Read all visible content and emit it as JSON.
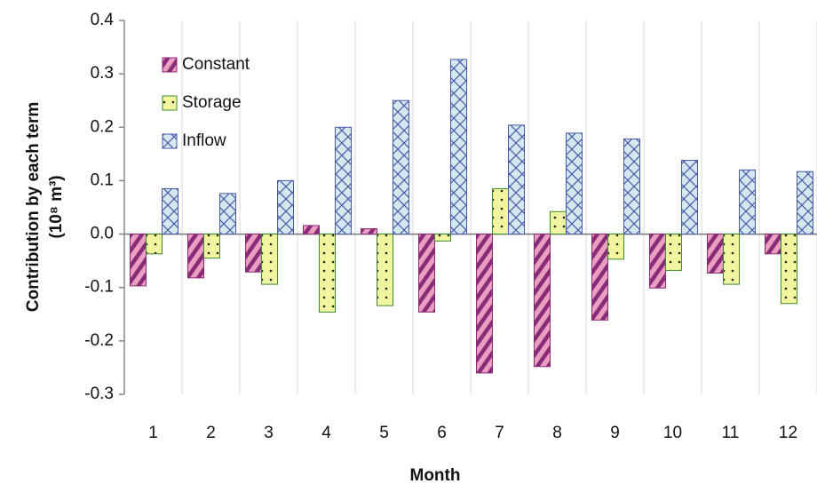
{
  "chart_data": {
    "type": "bar",
    "x_label": "Month",
    "y_label": [
      "Contribution by each term",
      "(10⁸ m³)"
    ],
    "categories": [
      "1",
      "2",
      "3",
      "4",
      "5",
      "6",
      "7",
      "8",
      "9",
      "10",
      "11",
      "12"
    ],
    "series": [
      {
        "name": "Constant",
        "color": "#e8a0c0",
        "edge": "#8a2a78",
        "pattern": "stripes",
        "values": [
          -0.097,
          -0.082,
          -0.071,
          0.016,
          0.01,
          -0.146,
          -0.26,
          -0.248,
          -0.161,
          -0.101,
          -0.073,
          -0.037
        ]
      },
      {
        "name": "Storage",
        "color": "#f2f5a0",
        "edge": "#3a8a2a",
        "pattern": "dots",
        "values": [
          -0.037,
          -0.045,
          -0.094,
          -0.146,
          -0.134,
          -0.013,
          0.085,
          0.042,
          -0.047,
          -0.068,
          -0.094,
          -0.13
        ]
      },
      {
        "name": "Inflow",
        "color": "#d4e8f0",
        "edge": "#4a5aa8",
        "pattern": "cross",
        "values": [
          0.085,
          0.076,
          0.1,
          0.2,
          0.25,
          0.327,
          0.204,
          0.189,
          0.178,
          0.138,
          0.12,
          0.117
        ]
      }
    ],
    "ylim": [
      -0.3,
      0.4
    ],
    "yticks": [
      {
        "value": 0.4,
        "label": "0.4"
      },
      {
        "value": 0.3,
        "label": "0.3"
      },
      {
        "value": 0.2,
        "label": "0.2"
      },
      {
        "value": 0.1,
        "label": "0.1"
      },
      {
        "value": 0,
        "label": "0.0"
      },
      {
        "value": -0.1,
        "label": "-0.1"
      },
      {
        "value": -0.2,
        "label": "-0.2"
      },
      {
        "value": -0.3,
        "label": "-0.3"
      }
    ],
    "grid": true,
    "legend": "upper left"
  }
}
